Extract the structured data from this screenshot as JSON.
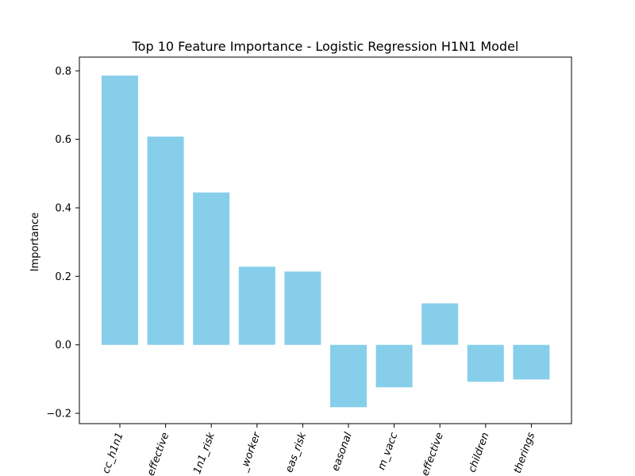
{
  "chart_data": {
    "type": "bar",
    "title": "Top 10 Feature Importance - Logistic Regression H1N1 Model",
    "xlabel": "",
    "ylabel": "Importance",
    "ylim": [
      -0.23,
      0.84
    ],
    "yticks": [
      -0.2,
      0.0,
      0.2,
      0.4,
      0.6,
      0.8
    ],
    "ytick_labels": [
      "−0.2",
      "0.0",
      "0.2",
      "0.4",
      "0.6",
      "0.8"
    ],
    "categories": [
      "cc_h1n1",
      "effective",
      "1n1_risk",
      "_worker",
      "eas_risk",
      "easonal",
      "m_vacc",
      "effective",
      "children",
      "therings"
    ],
    "values": [
      0.786,
      0.608,
      0.445,
      0.228,
      0.214,
      -0.182,
      -0.124,
      0.121,
      -0.108,
      -0.101
    ],
    "bar_color": "#87ceeb",
    "grid": false,
    "legend": "none"
  }
}
